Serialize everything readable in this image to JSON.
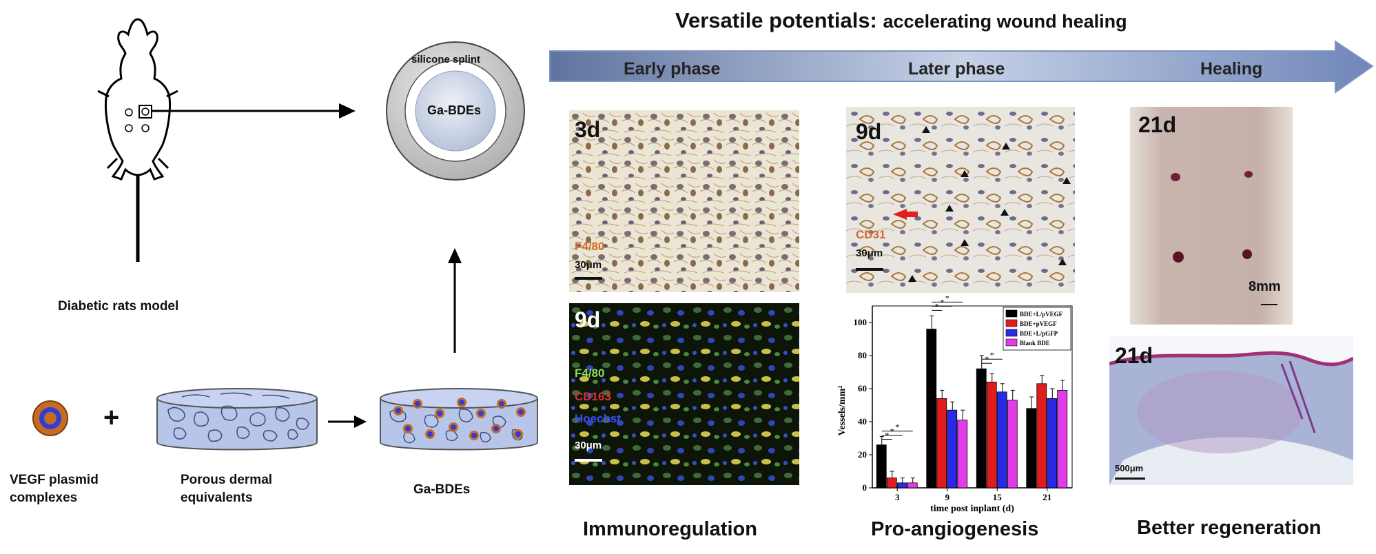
{
  "title": {
    "main": "Versatile potentials:",
    "sub": "accelerating wound healing"
  },
  "phases": [
    "Early phase",
    "Later phase",
    "Healing"
  ],
  "left": {
    "rat_label": "Diabetic rats model",
    "splint_label": "silicone splint",
    "center_label": "Ga-BDEs",
    "vegf_label_line1": "VEGF plasmid",
    "vegf_label_line2": "complexes",
    "plus": "+",
    "porous_label_line1": "Porous dermal",
    "porous_label_line2": "equivalents",
    "gabdes_label": "Ga-BDEs"
  },
  "panels": {
    "p1": {
      "day": "3d",
      "stain": "F4/80",
      "scale": "30μm"
    },
    "p2": {
      "day": "9d",
      "stain1": "F4/80",
      "stain2": "CD163",
      "stain3": "Hoechst",
      "scale": "30μm"
    },
    "p3": {
      "day": "9d",
      "stain": "CD31",
      "scale": "30μm"
    },
    "p4": {
      "day": "21d",
      "scale": "8mm"
    },
    "p5": {
      "day": "21d",
      "scale": "500μm"
    }
  },
  "captions": {
    "c1": "Immunoregulation",
    "c2": "Pro-angiogenesis",
    "c3": "Better regeneration"
  },
  "colors": {
    "arrow_start": "#6f83ae",
    "arrow_end": "#a9b8d6",
    "bar_black": "#000000",
    "bar_red": "#e01d1d",
    "bar_blue": "#2a2ae6",
    "bar_magenta": "#e23be8"
  },
  "chart_data": {
    "type": "bar",
    "categories": [
      "3",
      "9",
      "15",
      "21"
    ],
    "xlabel": "time post inplant (d)",
    "ylabel": "Vessels/mm²",
    "ylim": [
      0,
      110
    ],
    "yticks": [
      0,
      20,
      40,
      60,
      80,
      100
    ],
    "series": [
      {
        "name": "BDE+L/pVEGF",
        "values": [
          26,
          96,
          72,
          48
        ],
        "err": [
          5,
          8,
          8,
          7
        ]
      },
      {
        "name": "BDE+pVEGF",
        "values": [
          6,
          54,
          64,
          63
        ],
        "err": [
          4,
          5,
          5,
          5
        ]
      },
      {
        "name": "BDE+L/pGFP",
        "values": [
          3,
          47,
          58,
          54
        ],
        "err": [
          3,
          5,
          5,
          6
        ]
      },
      {
        "name": "Blank BDE",
        "values": [
          3,
          41,
          53,
          59
        ],
        "err": [
          3,
          6,
          6,
          6
        ]
      }
    ]
  }
}
